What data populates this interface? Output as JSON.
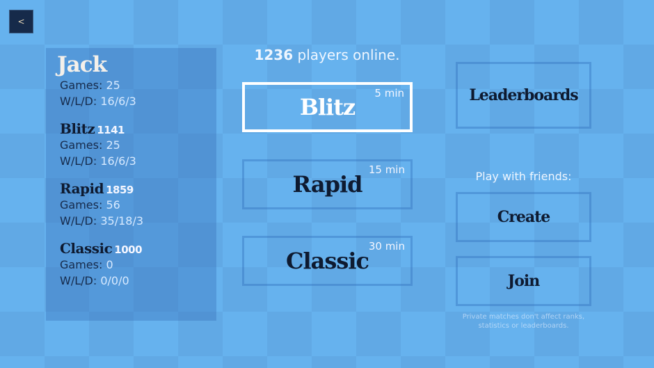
{
  "back_label": "<",
  "profile": {
    "name": "Jack",
    "games_label": "Games:",
    "wld_label": "W/L/D:",
    "games": "25",
    "wld": "16/6/3",
    "modes": [
      {
        "name": "Blitz",
        "rating": "1141",
        "games": "25",
        "wld": "16/6/3"
      },
      {
        "name": "Rapid",
        "rating": "1859",
        "games": "56",
        "wld": "35/18/3"
      },
      {
        "name": "Classic",
        "rating": "1000",
        "games": "0",
        "wld": "0/0/0"
      }
    ]
  },
  "online": {
    "count": "1236",
    "text": "players online."
  },
  "game_modes": [
    {
      "label": "Blitz",
      "time": "5 min",
      "selected": true
    },
    {
      "label": "Rapid",
      "time": "15 min",
      "selected": false
    },
    {
      "label": "Classic",
      "time": "30 min",
      "selected": false
    }
  ],
  "leaderboards_label": "Leaderboards",
  "friends": {
    "heading": "Play with friends:",
    "create": "Create",
    "join": "Join",
    "note": "Private matches don't affect ranks, statistics or leaderboards."
  }
}
